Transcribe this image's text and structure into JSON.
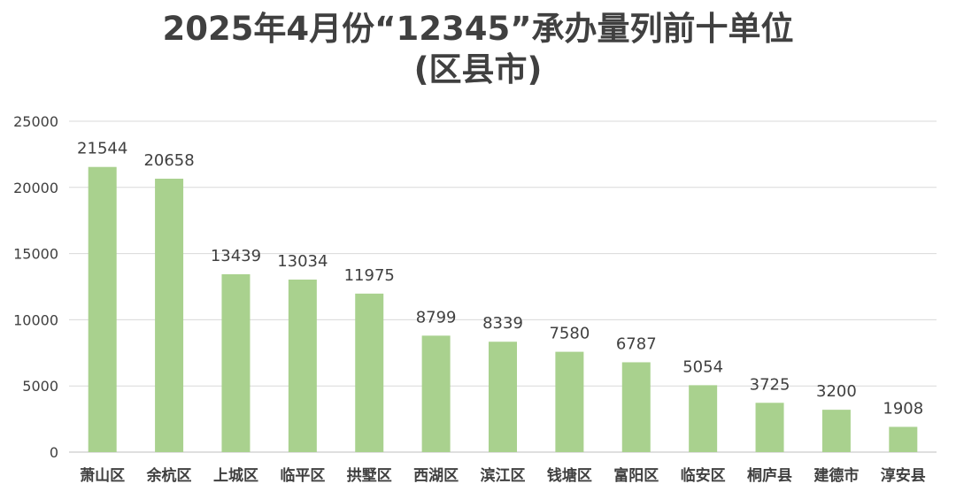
{
  "chart_data": {
    "type": "bar",
    "title_lines": [
      "2025年4月份“12345”承办量列前十单位",
      "(区县市)"
    ],
    "categories": [
      "萧山区",
      "余杭区",
      "上城区",
      "临平区",
      "拱墅区",
      "西湖区",
      "滨江区",
      "钱塘区",
      "富阳区",
      "临安区",
      "桐庐县",
      "建德市",
      "淳安县"
    ],
    "values": [
      21544,
      20658,
      13439,
      13034,
      11975,
      8799,
      8339,
      7580,
      6787,
      5054,
      3725,
      3200,
      1908
    ],
    "ylim": [
      0,
      25000
    ],
    "yticks": [
      0,
      5000,
      10000,
      15000,
      20000,
      25000
    ],
    "bar_color": "#a9d18e",
    "grid": true,
    "xlabel": "",
    "ylabel": ""
  }
}
